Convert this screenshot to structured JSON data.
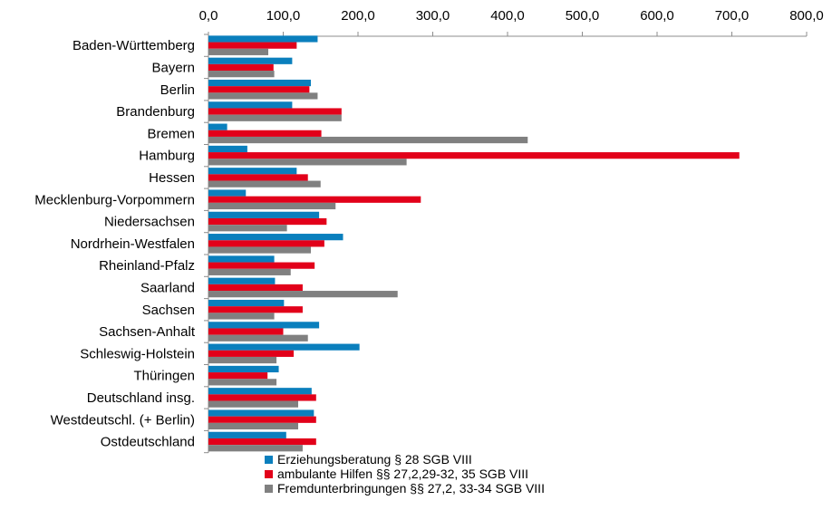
{
  "chart_data": {
    "type": "bar",
    "orientation": "horizontal",
    "title": "",
    "xlabel": "",
    "ylabel": "",
    "xlim": [
      0,
      800
    ],
    "x_ticks": [
      0,
      100,
      200,
      300,
      400,
      500,
      600,
      700,
      800
    ],
    "x_tick_labels": [
      "0,0",
      "100,0",
      "200,0",
      "300,0",
      "400,0",
      "500,0",
      "600,0",
      "700,0",
      "800,0"
    ],
    "x_axis_position": "top",
    "grid": false,
    "legend_position": "bottom",
    "categories": [
      "Baden-Württemberg",
      "Bayern",
      "Berlin",
      "Brandenburg",
      "Bremen",
      "Hamburg",
      "Hessen",
      "Mecklenburg-Vorpommern",
      "Niedersachsen",
      "Nordrhein-Westfalen",
      "Rheinland-Pfalz",
      "Saarland",
      "Sachsen",
      "Sachsen-Anhalt",
      "Schleswig-Holstein",
      "Thüringen",
      "Deutschland insg.",
      "Westdeutschl. (+ Berlin)",
      "Ostdeutschland"
    ],
    "series": [
      {
        "name": "Erziehungsberatung § 28 SGB VIII",
        "color": "#0a7fbd",
        "values": [
          146,
          112,
          137,
          112,
          25,
          52,
          118,
          50,
          148,
          180,
          88,
          89,
          101,
          148,
          202,
          94,
          138,
          141,
          104
        ]
      },
      {
        "name": "ambulante Hilfen §§ 27,2,29-32, 35 SGB VIII",
        "color": "#e2001a",
        "values": [
          118,
          87,
          135,
          178,
          151,
          710,
          133,
          284,
          158,
          155,
          142,
          126,
          126,
          100,
          114,
          79,
          144,
          144,
          144
        ]
      },
      {
        "name": "Fremdunterbringungen §§ 27,2, 33-34 SGB VIII",
        "color": "#808080",
        "values": [
          80,
          88,
          146,
          178,
          427,
          265,
          150,
          170,
          105,
          137,
          110,
          253,
          88,
          133,
          91,
          91,
          120,
          120,
          126
        ]
      }
    ]
  }
}
